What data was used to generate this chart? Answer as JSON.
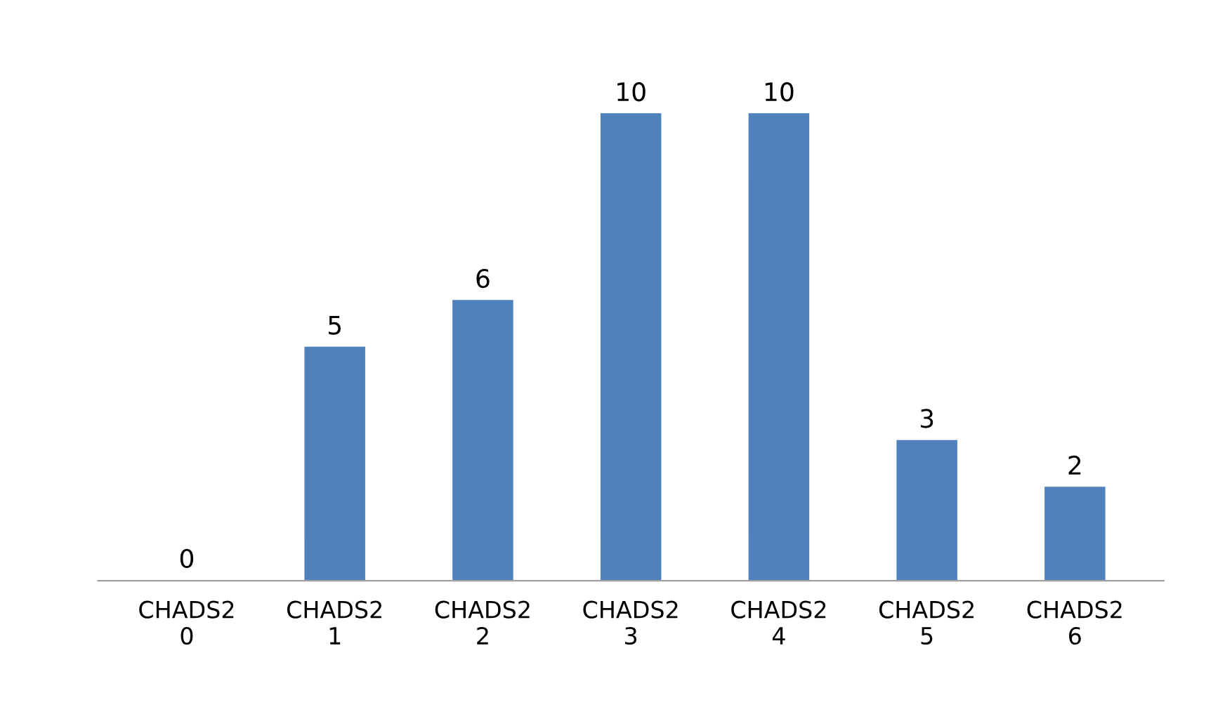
{
  "chart_data": {
    "type": "bar",
    "categories": [
      "CHADS2\n0",
      "CHADS2\n1",
      "CHADS2\n2",
      "CHADS2\n3",
      "CHADS2\n4",
      "CHADS2\n5",
      "CHADS2\n6"
    ],
    "values": [
      0,
      5,
      6,
      10,
      10,
      3,
      2
    ],
    "color": "#4f81bd",
    "data_labels": true,
    "grid": false,
    "legend": false
  }
}
